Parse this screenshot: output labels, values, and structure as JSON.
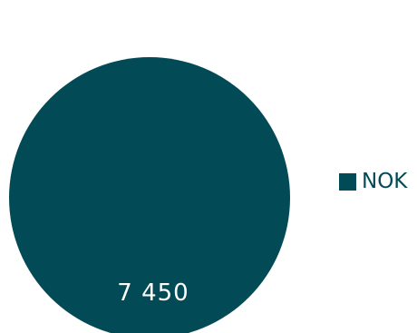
{
  "chart_data": {
    "type": "pie",
    "title": "",
    "categories": [
      "NOK"
    ],
    "values": [
      7450
    ],
    "data_labels": [
      "7 450"
    ],
    "colors": [
      "#024a55"
    ],
    "legend_position": "right"
  },
  "legend": {
    "items": [
      {
        "label": "NOK",
        "color": "#024a55"
      }
    ]
  }
}
